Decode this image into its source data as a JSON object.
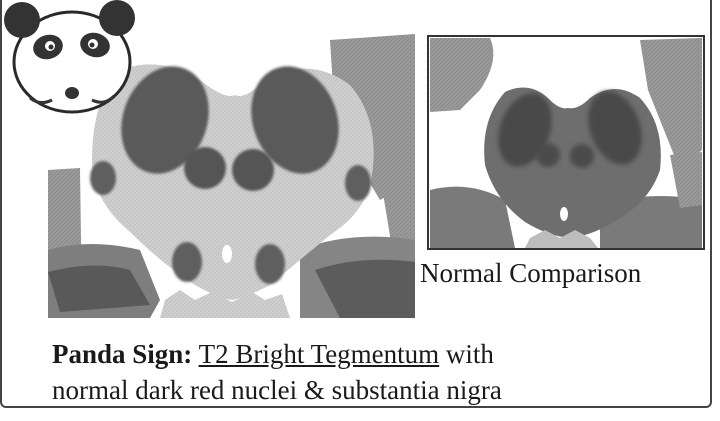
{
  "labels": {
    "top_partial": "",
    "comparison": "Normal Comparison",
    "caption_bold": "Panda Sign:",
    "caption_underlined": "T2 Bright Tegmentum",
    "caption_rest_line1": " with",
    "caption_line2": "normal dark red nuclei & substantia nigra"
  },
  "colors": {
    "tegmentum_bright": "#c9c9c9",
    "nuclei_dark": "#5a5a5a",
    "background_tissue": "#8f8f8f",
    "comparison_tegmentum": "#707070",
    "frame": "#444444"
  },
  "icons": {
    "panda": "panda-face-icon"
  }
}
